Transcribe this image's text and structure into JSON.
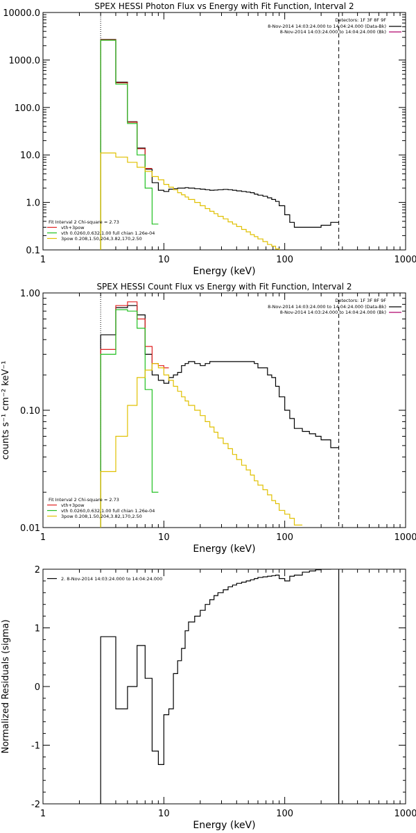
{
  "chart_data": [
    {
      "type": "line",
      "title": "SPEX HESSI Photon Flux vs Energy with Fit Function, Interval 2",
      "xlabel": "Energy (keV)",
      "ylabel": "",
      "xscale": "log",
      "yscale": "log",
      "xlim": [
        1,
        1000
      ],
      "ylim": [
        0.1,
        10000
      ],
      "xticks": [
        {
          "v": 1,
          "label": "1"
        },
        {
          "v": 10,
          "label": "10"
        },
        {
          "v": 100,
          "label": "100"
        },
        {
          "v": 1000,
          "label": "1000"
        }
      ],
      "yticks": [
        {
          "v": 0.1,
          "label": "0.1"
        },
        {
          "v": 1,
          "label": "1.0"
        },
        {
          "v": 10,
          "label": "10.0"
        },
        {
          "v": 100,
          "label": "100.0"
        },
        {
          "v": 1000,
          "label": "1000.0"
        },
        {
          "v": 10000,
          "label": "10000.0"
        }
      ],
      "vlines": [
        {
          "x": 3.0,
          "style": "dotted"
        },
        {
          "x": 280,
          "style": "dashed"
        }
      ],
      "info": {
        "detectors": "Detectors: 1F 3F 8F 9F",
        "lines": [
          {
            "text": "8-Nov-2014 14:03:24.000 to 14:04:24.000 (Data-Bk)",
            "color": "#000000"
          },
          {
            "text": "8-Nov-2014 14:03:24.000 to 14:04:24.000 (Bk)",
            "color": "#b0006a"
          }
        ]
      },
      "legend": {
        "placement": "bottom-left",
        "header": "Fit Interval  2   Chi-square = 2.73",
        "entries": [
          {
            "label": "vth+3pow",
            "color": "#e02020"
          },
          {
            "label": "vth 0.0260,0.632,1.00  full chian 1.26e-04",
            "color": "#20c020"
          },
          {
            "label": "3pow 0.208,1.50,204,3.82,170,2.50",
            "color": "#e0c000"
          }
        ]
      },
      "series": [
        {
          "color": "#000000",
          "edges": [
            3.0,
            3.5,
            4.0,
            4.5,
            5.0,
            5.5,
            6.0,
            6.5,
            7.0,
            7.5,
            8.0,
            8.5,
            9.0,
            10,
            11,
            12,
            13,
            14,
            15,
            16,
            18,
            20,
            22,
            24,
            26,
            28,
            31,
            34,
            37,
            40,
            44,
            48,
            52,
            56,
            60,
            66,
            72,
            78,
            84,
            90,
            100,
            110,
            120,
            140,
            160,
            180,
            200,
            240,
            280
          ],
          "values": [
            2700,
            2700,
            340,
            340,
            50,
            50,
            14,
            14,
            5,
            5,
            2.6,
            2.6,
            1.8,
            1.7,
            1.9,
            1.95,
            2.0,
            2.0,
            2.05,
            2.0,
            1.95,
            1.9,
            1.85,
            1.8,
            1.82,
            1.85,
            1.88,
            1.85,
            1.8,
            1.75,
            1.7,
            1.65,
            1.6,
            1.5,
            1.42,
            1.35,
            1.25,
            1.15,
            1.05,
            0.85,
            0.55,
            0.38,
            0.3,
            0.3,
            0.3,
            0.3,
            0.33,
            0.38
          ]
        },
        {
          "color": "#e02020",
          "edges": [
            3.0,
            3.5,
            4.0,
            4.5,
            5.0,
            5.5,
            6.0,
            6.5,
            7.0,
            7.5,
            8.0
          ],
          "values": [
            2650,
            2650,
            330,
            330,
            49,
            49,
            13.5,
            13.5,
            5.2,
            5.2
          ]
        },
        {
          "color": "#20c020",
          "edges": [
            3.0,
            3.5,
            4.0,
            4.5,
            5.0,
            5.5,
            6.0,
            6.5,
            7.0,
            7.5,
            8.0,
            8.5,
            9.0
          ],
          "values": [
            2600,
            2600,
            310,
            310,
            46,
            46,
            10,
            10,
            2,
            2,
            0.35,
            0.35
          ]
        },
        {
          "color": "#e0c000",
          "edges": [
            3.0,
            3.5,
            4.0,
            4.5,
            5.0,
            5.5,
            6.0,
            6.5,
            7.0,
            7.5,
            8.0,
            8.5,
            9.0,
            10,
            11,
            12,
            13,
            14,
            15,
            16,
            18,
            20,
            22,
            24,
            26,
            28,
            31,
            34,
            37,
            40,
            44,
            48,
            52,
            56,
            60,
            66,
            72,
            78,
            84,
            90,
            100
          ],
          "values": [
            11,
            11,
            9,
            9,
            7,
            7,
            5.5,
            5.5,
            4.5,
            4.5,
            3.5,
            3.5,
            3.0,
            2.4,
            2.1,
            1.85,
            1.6,
            1.45,
            1.3,
            1.15,
            1.0,
            0.85,
            0.74,
            0.65,
            0.58,
            0.51,
            0.45,
            0.39,
            0.35,
            0.31,
            0.27,
            0.24,
            0.21,
            0.19,
            0.17,
            0.15,
            0.13,
            0.12,
            0.105,
            0.095
          ]
        }
      ]
    },
    {
      "type": "line",
      "title": "SPEX HESSI Count Flux vs Energy with Fit Function, Interval 2",
      "xlabel": "Energy (keV)",
      "ylabel": "counts s⁻¹ cm⁻² keV⁻¹",
      "xscale": "log",
      "yscale": "log",
      "xlim": [
        1,
        1000
      ],
      "ylim": [
        0.01,
        1.0
      ],
      "xticks": [
        {
          "v": 1,
          "label": "1"
        },
        {
          "v": 10,
          "label": "10"
        },
        {
          "v": 100,
          "label": "100"
        },
        {
          "v": 1000,
          "label": "1000"
        }
      ],
      "yticks": [
        {
          "v": 0.01,
          "label": "0.01"
        },
        {
          "v": 0.1,
          "label": "0.10"
        },
        {
          "v": 1,
          "label": "1.00"
        }
      ],
      "vlines": [
        {
          "x": 3.0,
          "style": "dotted"
        },
        {
          "x": 280,
          "style": "dashed"
        }
      ],
      "info": {
        "detectors": "Detectors: 1F 3F 8F 9F",
        "lines": [
          {
            "text": "8-Nov-2014 14:03:24.000 to 14:04:24.000 (Data-Bk)",
            "color": "#000000"
          },
          {
            "text": "8-Nov-2014 14:03:24.000 to 14:04:24.000 (Bk)",
            "color": "#b0006a"
          }
        ]
      },
      "legend": {
        "placement": "bottom-left",
        "header": "Fit Interval  2   Chi-square = 2.73",
        "entries": [
          {
            "label": "vth+3pow",
            "color": "#e02020"
          },
          {
            "label": "vth 0.0260,0.632,1.00  full chian 1.26e-04",
            "color": "#20c020"
          },
          {
            "label": "3pow 0.208,1.50,204,3.82,170,2.50",
            "color": "#e0c000"
          }
        ]
      },
      "series": [
        {
          "color": "#000000",
          "edges": [
            3.0,
            3.5,
            4.0,
            4.5,
            5.0,
            5.5,
            6.0,
            6.5,
            7.0,
            7.5,
            8.0,
            8.5,
            9.0,
            10,
            11,
            12,
            13,
            14,
            15,
            16,
            18,
            20,
            22,
            24,
            26,
            28,
            31,
            34,
            37,
            40,
            44,
            48,
            52,
            56,
            60,
            66,
            72,
            78,
            84,
            90,
            100,
            110,
            120,
            140,
            160,
            180,
            200,
            240,
            280
          ],
          "values": [
            0.44,
            0.44,
            0.75,
            0.75,
            0.78,
            0.78,
            0.65,
            0.65,
            0.3,
            0.3,
            0.2,
            0.2,
            0.18,
            0.17,
            0.19,
            0.2,
            0.21,
            0.24,
            0.25,
            0.26,
            0.25,
            0.24,
            0.25,
            0.26,
            0.26,
            0.26,
            0.26,
            0.26,
            0.26,
            0.26,
            0.26,
            0.26,
            0.26,
            0.25,
            0.23,
            0.23,
            0.2,
            0.19,
            0.16,
            0.13,
            0.1,
            0.085,
            0.07,
            0.066,
            0.063,
            0.06,
            0.056,
            0.048
          ]
        },
        {
          "color": "#e02020",
          "edges": [
            3.0,
            3.5,
            4.0,
            4.5,
            5.0,
            5.5,
            6.0,
            6.5,
            7.0,
            7.5,
            8.0,
            8.5,
            9.0,
            10,
            11
          ],
          "values": [
            0.33,
            0.33,
            0.78,
            0.78,
            0.84,
            0.84,
            0.6,
            0.6,
            0.35,
            0.35,
            0.25,
            0.25,
            0.24,
            0.23
          ]
        },
        {
          "color": "#20c020",
          "edges": [
            3.0,
            3.5,
            4.0,
            4.5,
            5.0,
            5.5,
            6.0,
            6.5,
            7.0,
            7.5,
            8.0,
            8.5,
            9.0
          ],
          "values": [
            0.3,
            0.3,
            0.72,
            0.72,
            0.7,
            0.7,
            0.5,
            0.5,
            0.15,
            0.15,
            0.02,
            0.02
          ]
        },
        {
          "color": "#e0c000",
          "edges": [
            3.0,
            3.5,
            4.0,
            4.5,
            5.0,
            5.5,
            6.0,
            6.5,
            7.0,
            7.5,
            8.0,
            8.5,
            9.0,
            10,
            11,
            12,
            13,
            14,
            15,
            16,
            18,
            20,
            22,
            24,
            26,
            28,
            31,
            34,
            37,
            40,
            44,
            48,
            52,
            56,
            60,
            66,
            72,
            78,
            84,
            90,
            100,
            110,
            120,
            140
          ],
          "values": [
            0.03,
            0.03,
            0.06,
            0.06,
            0.11,
            0.11,
            0.19,
            0.19,
            0.22,
            0.22,
            0.25,
            0.25,
            0.23,
            0.2,
            0.18,
            0.16,
            0.145,
            0.13,
            0.12,
            0.11,
            0.1,
            0.09,
            0.08,
            0.072,
            0.065,
            0.058,
            0.052,
            0.047,
            0.042,
            0.038,
            0.034,
            0.031,
            0.028,
            0.025,
            0.023,
            0.021,
            0.019,
            0.017,
            0.016,
            0.014,
            0.013,
            0.012,
            0.0105
          ]
        }
      ]
    },
    {
      "type": "line",
      "title": "",
      "xlabel": "Energy (keV)",
      "ylabel": "Normalized Residuals (sigma)",
      "xscale": "log",
      "yscale": "linear",
      "xlim": [
        1,
        1000
      ],
      "ylim": [
        -2,
        2
      ],
      "xticks": [
        {
          "v": 1,
          "label": "1"
        },
        {
          "v": 10,
          "label": "10"
        },
        {
          "v": 100,
          "label": "100"
        },
        {
          "v": 1000,
          "label": "1000"
        }
      ],
      "yticks": [
        {
          "v": -2,
          "label": "-2"
        },
        {
          "v": -1,
          "label": "-1"
        },
        {
          "v": 0,
          "label": "0"
        },
        {
          "v": 1,
          "label": "1"
        },
        {
          "v": 2,
          "label": "2"
        }
      ],
      "vlines": [],
      "legend": {
        "placement": "top-left",
        "header": "",
        "entries": [
          {
            "label": "2.  8-Nov-2014 14:03:24.000 to 14:04:24.000",
            "color": "#000000"
          }
        ]
      },
      "series": [
        {
          "color": "#000000",
          "edges": [
            3.0,
            3.5,
            4.0,
            4.5,
            5.0,
            5.5,
            6.0,
            6.5,
            7.0,
            7.5,
            8.0,
            8.5,
            9.0,
            10,
            11,
            12,
            13,
            14,
            15,
            16,
            18,
            20,
            22,
            24,
            26,
            28,
            31,
            34,
            37,
            40,
            44,
            48,
            52,
            56,
            60,
            66,
            72,
            78,
            84,
            90,
            100,
            110,
            120,
            140,
            160,
            180,
            200,
            240,
            280
          ],
          "values": [
            0.85,
            0.85,
            -0.38,
            -0.38,
            0.0,
            0.0,
            0.7,
            0.7,
            0.14,
            0.14,
            -1.1,
            -1.1,
            -1.33,
            -0.48,
            -0.38,
            0.22,
            0.44,
            0.65,
            0.95,
            1.1,
            1.2,
            1.3,
            1.4,
            1.48,
            1.55,
            1.6,
            1.65,
            1.7,
            1.73,
            1.76,
            1.78,
            1.8,
            1.82,
            1.84,
            1.86,
            1.87,
            1.88,
            1.89,
            1.9,
            1.84,
            1.8,
            1.88,
            1.9,
            1.95,
            1.97,
            1.99,
            2.0,
            2.03
          ],
          "closeTo": -2
        }
      ]
    }
  ]
}
